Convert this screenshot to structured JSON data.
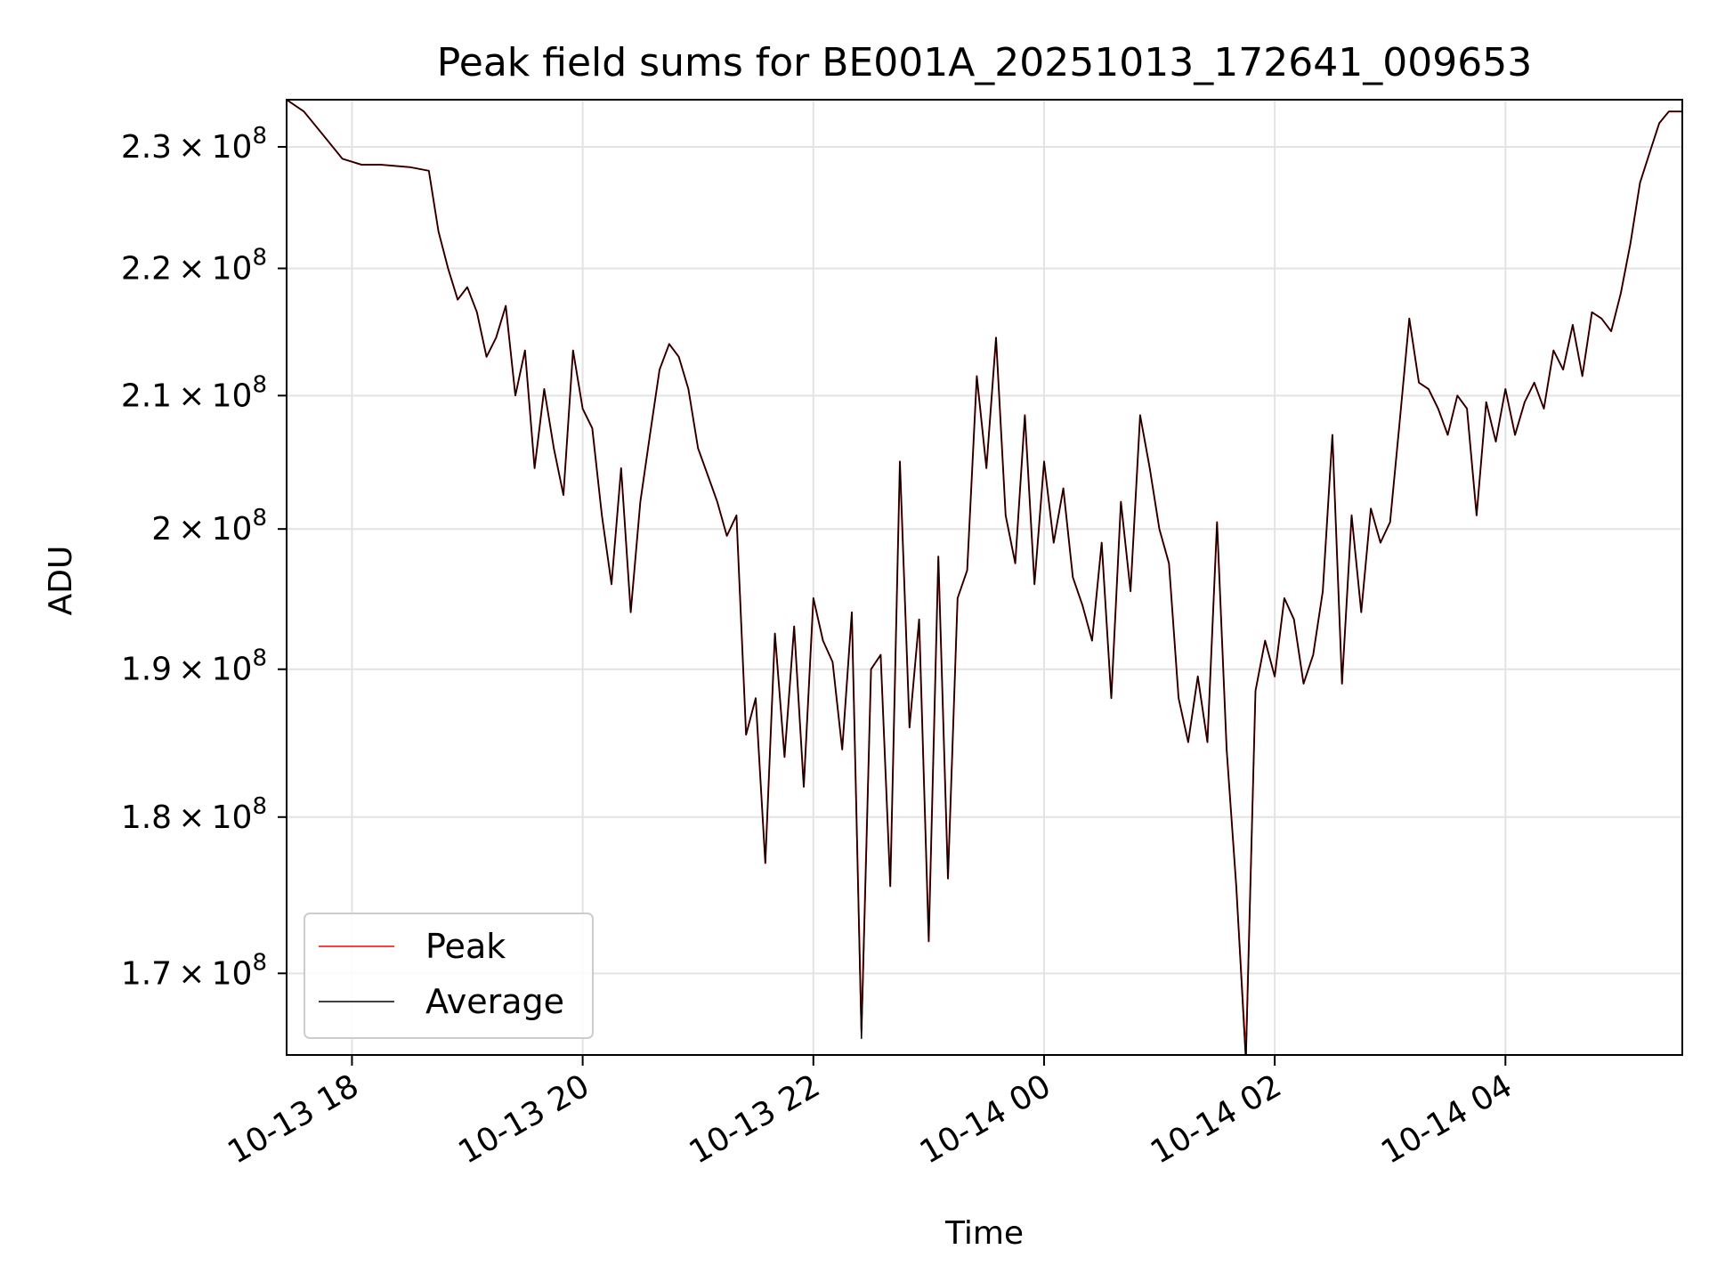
{
  "chart_data": {
    "type": "line",
    "title": "Peak field sums for BE001A_20251013_172641_009653",
    "xlabel": "Time",
    "ylabel": "ADU",
    "y_scale": "log",
    "ylim": [
      165000000,
      234000000
    ],
    "xlim": [
      "10-13 17:26",
      "10-14 05:32"
    ],
    "grid": true,
    "legend_position": "lower-left",
    "x_ticks": [
      "10-13 18",
      "10-13 20",
      "10-13 22",
      "10-14 00",
      "10-14 02",
      "10-14 04"
    ],
    "y_ticks": [
      {
        "base": "2.3",
        "exp": "8",
        "value": 230000000
      },
      {
        "base": "2.2",
        "exp": "8",
        "value": 220000000
      },
      {
        "base": "2.1",
        "exp": "8",
        "value": 210000000
      },
      {
        "base": "2",
        "exp": "8",
        "value": 200000000
      },
      {
        "base": "1.9",
        "exp": "8",
        "value": 190000000
      },
      {
        "base": "1.8",
        "exp": "8",
        "value": 180000000
      },
      {
        "base": "1.7",
        "exp": "8",
        "value": 170000000
      }
    ],
    "x": [
      "10-13 17:26",
      "10-13 17:35",
      "10-13 17:45",
      "10-13 17:55",
      "10-13 18:05",
      "10-13 18:15",
      "10-13 18:30",
      "10-13 18:40",
      "10-13 18:45",
      "10-13 18:50",
      "10-13 18:55",
      "10-13 19:00",
      "10-13 19:05",
      "10-13 19:10",
      "10-13 19:15",
      "10-13 19:20",
      "10-13 19:25",
      "10-13 19:30",
      "10-13 19:35",
      "10-13 19:40",
      "10-13 19:45",
      "10-13 19:50",
      "10-13 19:55",
      "10-13 20:00",
      "10-13 20:05",
      "10-13 20:10",
      "10-13 20:15",
      "10-13 20:20",
      "10-13 20:25",
      "10-13 20:30",
      "10-13 20:35",
      "10-13 20:40",
      "10-13 20:45",
      "10-13 20:50",
      "10-13 20:55",
      "10-13 21:00",
      "10-13 21:05",
      "10-13 21:10",
      "10-13 21:15",
      "10-13 21:20",
      "10-13 21:25",
      "10-13 21:30",
      "10-13 21:35",
      "10-13 21:40",
      "10-13 21:45",
      "10-13 21:50",
      "10-13 21:55",
      "10-13 22:00",
      "10-13 22:05",
      "10-13 22:10",
      "10-13 22:15",
      "10-13 22:20",
      "10-13 22:25",
      "10-13 22:30",
      "10-13 22:35",
      "10-13 22:40",
      "10-13 22:45",
      "10-13 22:50",
      "10-13 22:55",
      "10-13 23:00",
      "10-13 23:05",
      "10-13 23:10",
      "10-13 23:15",
      "10-13 23:20",
      "10-13 23:25",
      "10-13 23:30",
      "10-13 23:35",
      "10-13 23:40",
      "10-13 23:45",
      "10-13 23:50",
      "10-13 23:55",
      "10-14 00:00",
      "10-14 00:05",
      "10-14 00:10",
      "10-14 00:15",
      "10-14 00:20",
      "10-14 00:25",
      "10-14 00:30",
      "10-14 00:35",
      "10-14 00:40",
      "10-14 00:45",
      "10-14 00:50",
      "10-14 00:55",
      "10-14 01:00",
      "10-14 01:05",
      "10-14 01:10",
      "10-14 01:15",
      "10-14 01:20",
      "10-14 01:25",
      "10-14 01:30",
      "10-14 01:35",
      "10-14 01:40",
      "10-14 01:45",
      "10-14 01:50",
      "10-14 01:55",
      "10-14 02:00",
      "10-14 02:05",
      "10-14 02:10",
      "10-14 02:15",
      "10-14 02:20",
      "10-14 02:25",
      "10-14 02:30",
      "10-14 02:35",
      "10-14 02:40",
      "10-14 02:45",
      "10-14 02:50",
      "10-14 02:55",
      "10-14 03:00",
      "10-14 03:05",
      "10-14 03:10",
      "10-14 03:15",
      "10-14 03:20",
      "10-14 03:25",
      "10-14 03:30",
      "10-14 03:35",
      "10-14 03:40",
      "10-14 03:45",
      "10-14 03:50",
      "10-14 03:55",
      "10-14 04:00",
      "10-14 04:05",
      "10-14 04:10",
      "10-14 04:15",
      "10-14 04:20",
      "10-14 04:25",
      "10-14 04:30",
      "10-14 04:35",
      "10-14 04:40",
      "10-14 04:45",
      "10-14 04:50",
      "10-14 04:55",
      "10-14 05:00",
      "10-14 05:05",
      "10-14 05:10",
      "10-14 05:15",
      "10-14 05:20",
      "10-14 05:25",
      "10-14 05:32"
    ],
    "series": [
      {
        "name": "Peak",
        "color": "#ff0000",
        "values": [
          234000000,
          233000000,
          231000000,
          229000000,
          228500000,
          228500000,
          228300000,
          228000000,
          223000000,
          220000000,
          217500000,
          218500000,
          216500000,
          213000000,
          214500000,
          217000000,
          210000000,
          213500000,
          204500000,
          210500000,
          206000000,
          202500000,
          213500000,
          209000000,
          207500000,
          201000000,
          196000000,
          204500000,
          194000000,
          202000000,
          207000000,
          212000000,
          214000000,
          213000000,
          210500000,
          206000000,
          204000000,
          202000000,
          199500000,
          201000000,
          185500000,
          188000000,
          177000000,
          192500000,
          184000000,
          193000000,
          182000000,
          195000000,
          192000000,
          190500000,
          184500000,
          194000000,
          166500000,
          190000000,
          191000000,
          175500000,
          205000000,
          186000000,
          193500000,
          172000000,
          198000000,
          176000000,
          195000000,
          197000000,
          211500000,
          204500000,
          214500000,
          201000000,
          197500000,
          208500000,
          196000000,
          205000000,
          199000000,
          203000000,
          196500000,
          194500000,
          192000000,
          199000000,
          188000000,
          202000000,
          195500000,
          208500000,
          204500000,
          200000000,
          197500000,
          188000000,
          185000000,
          189500000,
          185000000,
          200500000,
          184500000,
          175500000,
          165000000,
          188500000,
          192000000,
          189500000,
          195000000,
          193500000,
          189000000,
          191000000,
          195500000,
          207000000,
          189000000,
          201000000,
          194000000,
          201500000,
          199000000,
          200500000,
          208000000,
          216000000,
          211000000,
          210500000,
          209000000,
          207000000,
          210000000,
          209000000,
          201000000,
          209500000,
          206500000,
          210500000,
          207000000,
          209500000,
          211000000,
          209000000,
          213500000,
          212000000,
          215500000,
          211500000,
          216500000,
          216000000,
          215000000,
          218000000,
          222000000,
          227000000,
          229500000,
          232000000,
          233000000,
          233000000
        ]
      },
      {
        "name": "Average",
        "color": "#000000",
        "values": [
          234000000,
          233000000,
          231000000,
          229000000,
          228500000,
          228500000,
          228300000,
          228000000,
          223000000,
          220000000,
          217500000,
          218500000,
          216500000,
          213000000,
          214500000,
          217000000,
          210000000,
          213500000,
          204500000,
          210500000,
          206000000,
          202500000,
          213500000,
          209000000,
          207500000,
          201000000,
          196000000,
          204500000,
          194000000,
          202000000,
          207000000,
          212000000,
          214000000,
          213000000,
          210500000,
          206000000,
          204000000,
          202000000,
          199500000,
          201000000,
          185500000,
          188000000,
          177000000,
          192500000,
          184000000,
          193000000,
          182000000,
          195000000,
          192000000,
          190500000,
          184500000,
          194000000,
          166000000,
          190000000,
          191000000,
          175500000,
          205000000,
          186000000,
          193500000,
          172000000,
          198000000,
          176000000,
          195000000,
          197000000,
          211500000,
          204500000,
          214500000,
          201000000,
          197500000,
          208500000,
          196000000,
          205000000,
          199000000,
          203000000,
          196500000,
          194500000,
          192000000,
          199000000,
          188000000,
          202000000,
          195500000,
          208500000,
          204500000,
          200000000,
          197500000,
          188000000,
          185000000,
          189500000,
          185000000,
          200500000,
          184500000,
          175500000,
          164500000,
          188500000,
          192000000,
          189500000,
          195000000,
          193500000,
          189000000,
          191000000,
          195500000,
          207000000,
          189000000,
          201000000,
          194000000,
          201500000,
          199000000,
          200500000,
          208000000,
          216000000,
          211000000,
          210500000,
          209000000,
          207000000,
          210000000,
          209000000,
          201000000,
          209500000,
          206500000,
          210500000,
          207000000,
          209500000,
          211000000,
          209000000,
          213500000,
          212000000,
          215500000,
          211500000,
          216500000,
          216000000,
          215000000,
          218000000,
          222000000,
          227000000,
          229500000,
          232000000,
          233000000,
          233000000
        ]
      }
    ]
  }
}
